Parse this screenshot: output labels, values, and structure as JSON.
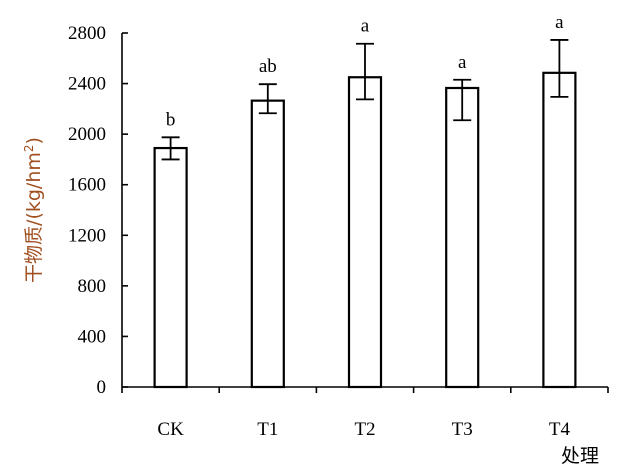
{
  "chart_data": {
    "type": "bar",
    "categories": [
      "CK",
      "T1",
      "T2",
      "T3",
      "T4"
    ],
    "values": [
      1890,
      2265,
      2450,
      2365,
      2485
    ],
    "error": [
      [
        1800,
        1975
      ],
      [
        2165,
        2395
      ],
      [
        2275,
        2715
      ],
      [
        2110,
        2430
      ],
      [
        2295,
        2745
      ]
    ],
    "significance": [
      "b",
      "ab",
      "a",
      "a",
      "a"
    ],
    "ylabel_main": "干物质/(kg/hm",
    "ylabel_sup": "2",
    "ylabel_end": ")",
    "xlabel": "处理",
    "ylim": [
      0,
      2800
    ],
    "yticks": [
      0,
      400,
      800,
      1200,
      1600,
      2000,
      2400,
      2800
    ],
    "grid": false,
    "legend": "none"
  }
}
